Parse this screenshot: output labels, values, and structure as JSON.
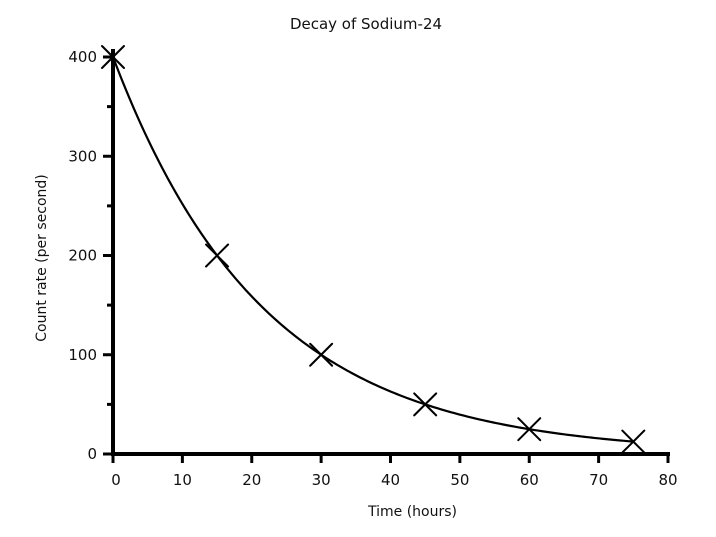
{
  "chart_data": {
    "type": "scatter",
    "title": "Decay of Sodium-24",
    "xlabel": "Time (hours)",
    "ylabel": "Count rate (per second)",
    "xlim": [
      0,
      80
    ],
    "ylim": [
      0,
      400
    ],
    "x_ticks": [
      0,
      10,
      20,
      30,
      40,
      50,
      60,
      70,
      80
    ],
    "y_ticks": [
      0,
      100,
      200,
      300,
      400
    ],
    "y_minor_ticks": [
      50,
      150,
      250,
      350
    ],
    "grid": false,
    "marker": "x",
    "trend_line": "smooth exponential decay curve",
    "series": [
      {
        "x": [
          0,
          15,
          30,
          45,
          60,
          75
        ],
        "y": [
          400,
          200,
          100,
          50,
          25,
          12.5
        ]
      }
    ]
  }
}
